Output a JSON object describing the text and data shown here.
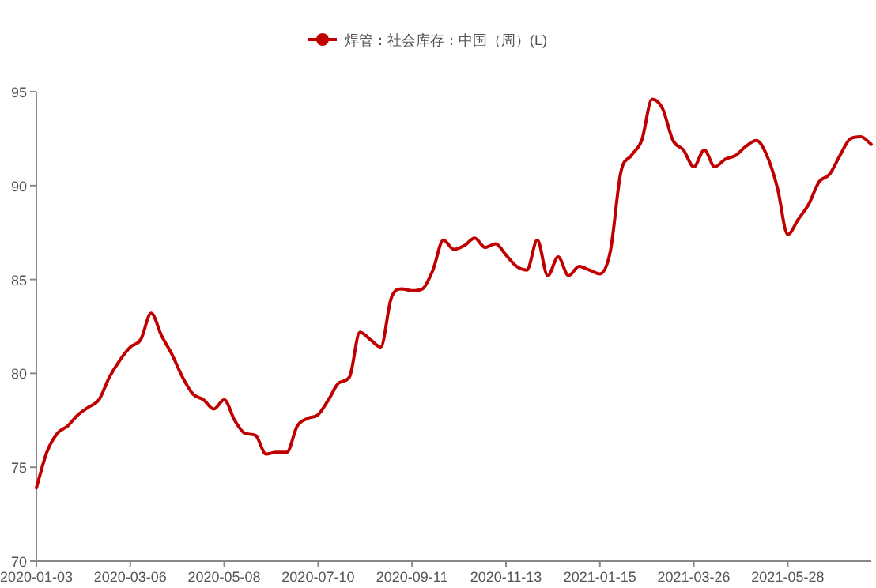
{
  "chart_data": {
    "type": "line",
    "categories": [
      "2020-01-03",
      null,
      null,
      null,
      null,
      null,
      null,
      null,
      null,
      "2020-03-06",
      null,
      null,
      null,
      null,
      null,
      null,
      null,
      null,
      "2020-05-08",
      null,
      null,
      null,
      null,
      null,
      null,
      null,
      null,
      "2020-07-10",
      null,
      null,
      null,
      null,
      null,
      null,
      null,
      null,
      "2020-09-11",
      null,
      null,
      null,
      null,
      null,
      null,
      null,
      null,
      "2020-11-13",
      null,
      null,
      null,
      null,
      null,
      null,
      null,
      null,
      "2021-01-15",
      null,
      null,
      null,
      null,
      null,
      null,
      null,
      null,
      "2021-03-26",
      null,
      null,
      null,
      null,
      null,
      null,
      null,
      null,
      "2021-05-28",
      null,
      null,
      null,
      null,
      null,
      null,
      null,
      null
    ],
    "series": [
      {
        "name": "焊管：社会库存：中国（周）(L)",
        "color": "#c00000",
        "values": [
          73.9,
          75.8,
          76.8,
          77.2,
          77.8,
          78.2,
          78.6,
          79.8,
          80.7,
          81.4,
          81.8,
          83.2,
          82.0,
          81.0,
          79.8,
          78.9,
          78.6,
          78.1,
          78.6,
          77.5,
          76.8,
          76.7,
          75.7,
          75.8,
          75.8,
          77.2,
          77.6,
          77.8,
          78.6,
          79.5,
          79.8,
          82.2,
          81.8,
          81.4,
          84.0,
          84.5,
          84.4,
          84.5,
          85.5,
          87.1,
          86.6,
          86.8,
          87.2,
          86.7,
          86.9,
          86.3,
          85.7,
          85.5,
          87.1,
          85.2,
          86.2,
          85.2,
          85.7,
          85.5,
          85.3,
          86.5,
          90.7,
          91.6,
          92.4,
          94.6,
          94.1,
          92.4,
          91.9,
          91.0,
          91.9,
          91.0,
          91.4,
          91.6,
          92.1,
          92.4,
          91.6,
          89.9,
          87.4,
          88.2,
          89.0,
          90.2,
          90.6,
          91.6,
          92.5,
          92.6,
          92.2
        ]
      }
    ],
    "ylim": [
      70,
      95
    ],
    "yticks": [
      70,
      75,
      80,
      85,
      90,
      95
    ],
    "grid": false,
    "legend": "top"
  }
}
